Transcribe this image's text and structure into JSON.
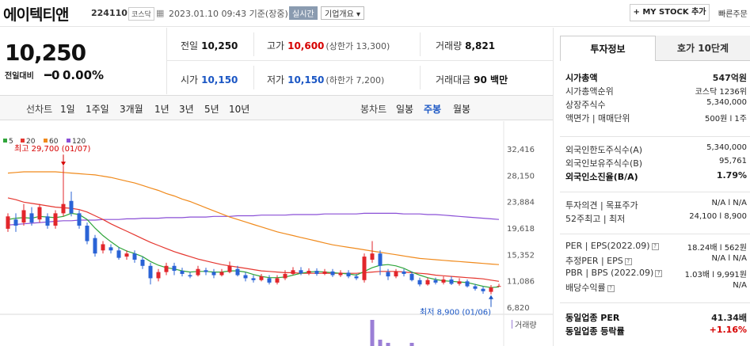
{
  "header": {
    "name": "에이텍티앤",
    "code": "224110",
    "market": "코스닥",
    "timestamp": "2023.01.10 09:43  기준(장중)",
    "realtime_label": "실시간",
    "company_label": "기업개요 ▾",
    "mystock_label": "+ MY STOCK 추가",
    "quick_label": "빠른주문"
  },
  "price": {
    "current": "10,250",
    "change_label": "전일대비",
    "change_value": "━0",
    "change_pct": "0.00%"
  },
  "stats": {
    "prev_label": "전일",
    "prev": "10,250",
    "high_label": "고가",
    "high": "10,600",
    "upper_limit": "(상한가 13,300)",
    "volume_label": "거래량",
    "volume": "8,821",
    "open_label": "시가",
    "open": "10,150",
    "low_label": "저가",
    "low": "10,150",
    "lower_limit": "(하한가 7,200)",
    "amount_label": "거래대금",
    "amount": "90 백만"
  },
  "toolbar": {
    "line_chart_label": "선차트",
    "periods": [
      "1일",
      "1주일",
      "3개월",
      "1년",
      "3년",
      "5년",
      "10년"
    ],
    "candle_label": "봉차트",
    "candle_periods": [
      "일봉",
      "주봉",
      "월봉"
    ],
    "candle_selected": "주봉"
  },
  "chart_data": {
    "type": "line",
    "ma_legend": [
      "5",
      "20",
      "60",
      "120"
    ],
    "ma_colors": [
      "#2fa53a",
      "#e5362f",
      "#f08a1c",
      "#8a4fd6"
    ],
    "y_ticks": [
      "32,416",
      "28,150",
      "23,884",
      "19,618",
      "15,352",
      "11,086",
      "6,820"
    ],
    "ylim": [
      6820,
      32416
    ],
    "high_annotation": "최고 29,700 (01/07)",
    "low_annotation": "최저 8,900 (01/06)",
    "volume_label": "거래량",
    "candles": [
      {
        "o": 19500,
        "c": 21500,
        "h": 22000,
        "l": 19000
      },
      {
        "o": 21000,
        "c": 20000,
        "h": 22000,
        "l": 19000
      },
      {
        "o": 20500,
        "c": 22500,
        "h": 23500,
        "l": 20000
      },
      {
        "o": 22000,
        "c": 20500,
        "h": 23000,
        "l": 20000
      },
      {
        "o": 21000,
        "c": 23000,
        "h": 23500,
        "l": 20500
      },
      {
        "o": 21500,
        "c": 20000,
        "h": 22000,
        "l": 19500
      },
      {
        "o": 20000,
        "c": 22000,
        "h": 22500,
        "l": 19500
      },
      {
        "o": 22000,
        "c": 23500,
        "h": 29700,
        "l": 21500
      },
      {
        "o": 24000,
        "c": 22000,
        "h": 25500,
        "l": 21500
      },
      {
        "o": 22000,
        "c": 20000,
        "h": 22500,
        "l": 19500
      },
      {
        "o": 20000,
        "c": 17500,
        "h": 20500,
        "l": 17000
      },
      {
        "o": 18000,
        "c": 15500,
        "h": 18500,
        "l": 15000
      },
      {
        "o": 16000,
        "c": 17000,
        "h": 17500,
        "l": 15500
      },
      {
        "o": 16500,
        "c": 16000,
        "h": 17000,
        "l": 15500
      },
      {
        "o": 16000,
        "c": 14800,
        "h": 16500,
        "l": 14500
      },
      {
        "o": 15000,
        "c": 15500,
        "h": 16000,
        "l": 14500
      },
      {
        "o": 15500,
        "c": 14500,
        "h": 16000,
        "l": 14000
      },
      {
        "o": 14500,
        "c": 13500,
        "h": 15000,
        "l": 13000
      },
      {
        "o": 13500,
        "c": 11500,
        "h": 14000,
        "l": 10500
      },
      {
        "o": 11500,
        "c": 12500,
        "h": 13000,
        "l": 11000
      },
      {
        "o": 12500,
        "c": 13500,
        "h": 14000,
        "l": 12000
      },
      {
        "o": 13500,
        "c": 12700,
        "h": 14000,
        "l": 12000
      },
      {
        "o": 12700,
        "c": 12200,
        "h": 13200,
        "l": 11800
      },
      {
        "o": 12000,
        "c": 11800,
        "h": 12500,
        "l": 11500
      },
      {
        "o": 12000,
        "c": 13000,
        "h": 13500,
        "l": 11800
      },
      {
        "o": 12800,
        "c": 12500,
        "h": 13200,
        "l": 12000
      },
      {
        "o": 12500,
        "c": 12000,
        "h": 13000,
        "l": 11500
      },
      {
        "o": 12000,
        "c": 12500,
        "h": 13000,
        "l": 11800
      },
      {
        "o": 12500,
        "c": 13500,
        "h": 14200,
        "l": 12300
      },
      {
        "o": 13000,
        "c": 12000,
        "h": 13500,
        "l": 11800
      },
      {
        "o": 12000,
        "c": 11500,
        "h": 12500,
        "l": 11000
      },
      {
        "o": 11500,
        "c": 11200,
        "h": 12000,
        "l": 10800
      },
      {
        "o": 11200,
        "c": 11800,
        "h": 12200,
        "l": 11000
      },
      {
        "o": 11500,
        "c": 10800,
        "h": 12000,
        "l": 10500
      },
      {
        "o": 10800,
        "c": 11500,
        "h": 12000,
        "l": 10500
      },
      {
        "o": 11500,
        "c": 12200,
        "h": 12800,
        "l": 11200
      },
      {
        "o": 12200,
        "c": 12800,
        "h": 13300,
        "l": 12000
      },
      {
        "o": 12800,
        "c": 12300,
        "h": 13300,
        "l": 12000
      },
      {
        "o": 12300,
        "c": 12700,
        "h": 13100,
        "l": 12000
      },
      {
        "o": 12700,
        "c": 12200,
        "h": 13100,
        "l": 11900
      },
      {
        "o": 12200,
        "c": 12600,
        "h": 13000,
        "l": 12000
      },
      {
        "o": 12600,
        "c": 12000,
        "h": 13000,
        "l": 11700
      },
      {
        "o": 12000,
        "c": 12400,
        "h": 12800,
        "l": 11700
      },
      {
        "o": 12400,
        "c": 11800,
        "h": 12800,
        "l": 11500
      },
      {
        "o": 11800,
        "c": 11500,
        "h": 12200,
        "l": 11200
      },
      {
        "o": 11200,
        "c": 15000,
        "h": 15500,
        "l": 10800
      },
      {
        "o": 14500,
        "c": 15500,
        "h": 17500,
        "l": 14000
      },
      {
        "o": 15500,
        "c": 13500,
        "h": 16000,
        "l": 12000
      },
      {
        "o": 12500,
        "c": 11800,
        "h": 13000,
        "l": 11200
      },
      {
        "o": 11800,
        "c": 12600,
        "h": 13000,
        "l": 11500
      },
      {
        "o": 12600,
        "c": 12200,
        "h": 13000,
        "l": 11800
      },
      {
        "o": 12200,
        "c": 11200,
        "h": 12600,
        "l": 11000
      },
      {
        "o": 11200,
        "c": 10500,
        "h": 11600,
        "l": 10200
      },
      {
        "o": 10500,
        "c": 11200,
        "h": 11600,
        "l": 10300
      },
      {
        "o": 11200,
        "c": 10800,
        "h": 11600,
        "l": 10500
      },
      {
        "o": 10800,
        "c": 11300,
        "h": 11800,
        "l": 10500
      },
      {
        "o": 11300,
        "c": 10600,
        "h": 11800,
        "l": 10400
      },
      {
        "o": 10600,
        "c": 11000,
        "h": 11500,
        "l": 10300
      },
      {
        "o": 11000,
        "c": 10200,
        "h": 11300,
        "l": 10000
      },
      {
        "o": 10200,
        "c": 9800,
        "h": 10600,
        "l": 9500
      },
      {
        "o": 9800,
        "c": 9400,
        "h": 10200,
        "l": 9000
      },
      {
        "o": 9300,
        "c": 10000,
        "h": 10400,
        "l": 8900
      },
      {
        "o": 10150,
        "c": 10250,
        "h": 10600,
        "l": 10150
      }
    ],
    "ma5": [
      21000,
      21200,
      21300,
      21200,
      21500,
      21400,
      21300,
      21500,
      22000,
      21800,
      21000,
      19600,
      18400,
      17400,
      16500,
      15900,
      15500,
      15000,
      14200,
      13600,
      13200,
      13000,
      12700,
      12500,
      12600,
      12600,
      12500,
      12500,
      12700,
      12700,
      12500,
      12100,
      11800,
      11600,
      11600,
      11700,
      12000,
      12300,
      12500,
      12600,
      12500,
      12400,
      12300,
      12200,
      12000,
      12600,
      13200,
      13600,
      13700,
      13500,
      13100,
      12500,
      12000,
      11600,
      11300,
      11100,
      11000,
      10900,
      10800,
      10500,
      10200,
      10000,
      10100
    ],
    "ma20": [
      24500,
      24200,
      23800,
      23600,
      23400,
      23200,
      23000,
      22900,
      22800,
      22600,
      22200,
      21600,
      21000,
      20300,
      19700,
      19100,
      18500,
      17900,
      17300,
      16800,
      16300,
      15800,
      15400,
      15000,
      14600,
      14300,
      14000,
      13700,
      13500,
      13300,
      13100,
      12900,
      12700,
      12600,
      12500,
      12400,
      12400,
      12300,
      12300,
      12300,
      12300,
      12300,
      12300,
      12300,
      12300,
      12400,
      12500,
      12600,
      12600,
      12600,
      12500,
      12400,
      12300,
      12200,
      12000,
      11900,
      11800,
      11700,
      11600,
      11500,
      11400,
      11200,
      11000
    ],
    "ma60": [
      28500,
      28600,
      28700,
      28700,
      28700,
      28700,
      28700,
      28600,
      28500,
      28400,
      28300,
      28200,
      28000,
      27800,
      27500,
      27200,
      26900,
      26500,
      26100,
      25700,
      25200,
      24800,
      24300,
      23900,
      23400,
      22900,
      22400,
      21900,
      21400,
      21000,
      20600,
      20200,
      19800,
      19400,
      19000,
      18700,
      18400,
      18100,
      17800,
      17500,
      17200,
      16900,
      16700,
      16500,
      16300,
      16100,
      15900,
      15700,
      15500,
      15300,
      15100,
      14900,
      14700,
      14600,
      14500,
      14400,
      14300,
      14200,
      14100,
      14000,
      13900,
      13800,
      13700
    ],
    "ma120": [
      20100,
      20200,
      20300,
      20400,
      20500,
      20600,
      20700,
      20800,
      20800,
      20900,
      20900,
      20900,
      21000,
      21000,
      21000,
      21100,
      21100,
      21200,
      21200,
      21200,
      21300,
      21300,
      21300,
      21400,
      21400,
      21400,
      21500,
      21500,
      21500,
      21600,
      21600,
      21600,
      21700,
      21700,
      21700,
      21700,
      21800,
      21800,
      21800,
      21800,
      21900,
      21900,
      21900,
      21900,
      21900,
      22000,
      22000,
      22000,
      22000,
      22000,
      21900,
      21900,
      21900,
      21800,
      21800,
      21700,
      21600,
      21500,
      21400,
      21300,
      21200,
      21100,
      21000
    ],
    "volume": [
      0,
      0,
      0,
      0,
      0,
      0,
      0,
      0,
      0,
      0,
      0,
      0,
      0,
      0,
      0,
      0,
      0,
      0,
      0,
      0,
      0,
      0,
      0,
      0,
      0,
      0,
      0,
      0,
      0,
      0,
      0,
      0,
      0,
      0,
      0,
      0,
      0,
      0,
      0,
      0,
      0,
      0,
      0,
      0,
      0,
      0,
      33,
      8,
      4,
      0,
      0,
      4,
      0,
      0,
      0,
      0,
      0,
      0,
      0,
      0,
      0,
      0,
      0
    ]
  },
  "side_panel": {
    "tabs": [
      "투자정보",
      "호가 10단계"
    ],
    "rows1": [
      {
        "k": "시가총액",
        "v": "547억원",
        "bold": true
      },
      {
        "k": "시가총액순위",
        "v": "코스닥 1236위"
      },
      {
        "k": "상장주식수",
        "v": "5,340,000"
      },
      {
        "k": "액면가 | 매매단위",
        "v": "500원  l  1주"
      }
    ],
    "rows2": [
      {
        "k": "외국인한도주식수(A)",
        "v": "5,340,000"
      },
      {
        "k": "외국인보유주식수(B)",
        "v": "95,761"
      },
      {
        "k": "외국인소진율(B/A)",
        "v": "1.79%",
        "bold": true
      }
    ],
    "rows3": [
      {
        "k": "투자의견 | 목표주가",
        "v": "N/A  l  N/A"
      },
      {
        "k": "52주최고 | 최저",
        "v": "24,100  l  8,900"
      }
    ],
    "rows4": [
      {
        "k": "PER | EPS(2022.09)",
        "v": "18.24배  l  562원"
      },
      {
        "k": "추정PER | EPS",
        "v": "N/A  l  N/A"
      },
      {
        "k": "PBR | BPS (2022.09)",
        "v": "1.03배  l  9,991원"
      },
      {
        "k": "배당수익률",
        "v": "N/A"
      }
    ],
    "rows5": [
      {
        "k": "동일업종 PER",
        "v": "41.34배"
      },
      {
        "k": "동일업종 등락률",
        "v": "+1.16%"
      }
    ]
  }
}
